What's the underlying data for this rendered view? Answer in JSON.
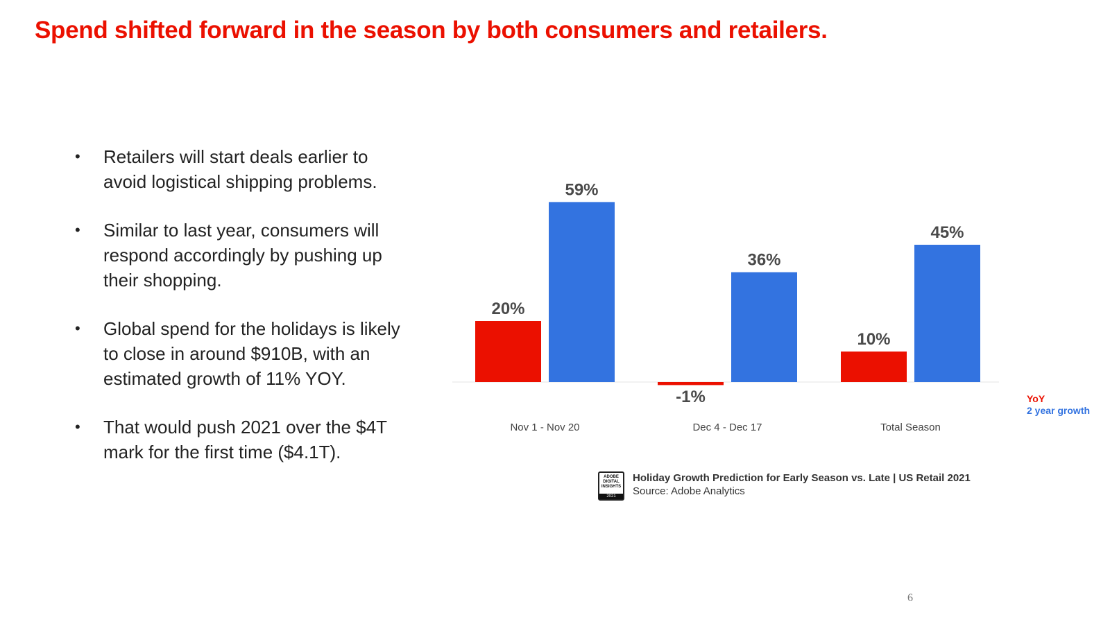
{
  "slide": {
    "title": "Spend shifted forward in the season by both consumers and retailers.",
    "page_number": "6"
  },
  "bullets": [
    "Retailers will start deals earlier to avoid logistical shipping problems.",
    "Similar to last year, consumers will respond accordingly by pushing up their shopping.",
    "Global spend for the holidays is likely to close in around $910B, with an estimated growth of 11% YOY.",
    "That would push 2021 over the $4T mark for the first time ($4.1T)."
  ],
  "bullet_icon": "bullet-dot",
  "chart_data": {
    "type": "bar",
    "categories": [
      "Nov 1 - Nov 20",
      "Dec 4 - Dec 17",
      "Total Season"
    ],
    "series": [
      {
        "name": "YoY",
        "values": [
          20,
          -1,
          10
        ],
        "labels": [
          "20%",
          "-1%",
          "10%"
        ],
        "color": "#eb1000"
      },
      {
        "name": "2 year growth",
        "values": [
          59,
          36,
          45
        ],
        "labels": [
          "59%",
          "36%",
          "45%"
        ],
        "color": "#3373e0"
      }
    ],
    "ylim": [
      -1,
      59
    ],
    "grid": false,
    "legend_position": "bottom-right",
    "title": "",
    "xlabel": "",
    "ylabel": ""
  },
  "source": {
    "badge_text": "ADOBE\nDIGITAL\nINSIGHTS",
    "badge_year": "2021",
    "title": "Holiday Growth Prediction for Early Season vs. Late | US Retail 2021",
    "subtitle": "Source: Adobe Analytics"
  },
  "colors": {
    "accent": "#eb1000",
    "blue": "#3373e0",
    "text": "#222222"
  }
}
